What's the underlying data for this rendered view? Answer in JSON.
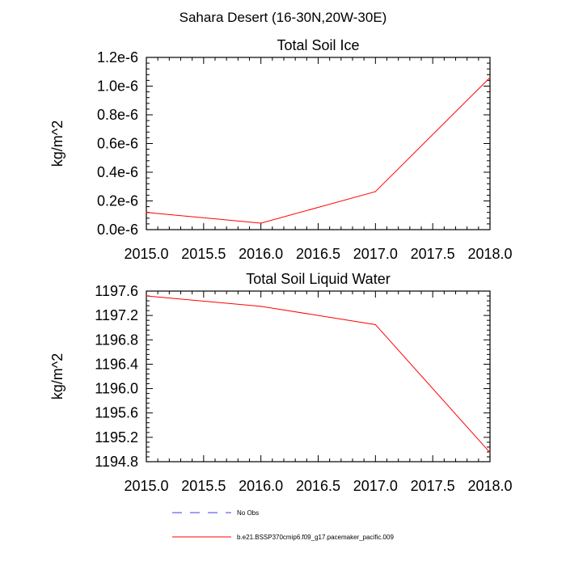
{
  "figure_title": "Sahara Desert (16-30N,20W-30E)",
  "legend": {
    "entries": [
      {
        "label": "No Obs",
        "color": "#3b3bff",
        "dash": "dashed"
      },
      {
        "label": "b.e21.BSSP370cmip6.f09_g17.pacemaker_pacific.009",
        "color": "#ff0000",
        "dash": "solid"
      }
    ]
  },
  "chart_data": [
    {
      "type": "line",
      "title": "Total Soil Ice",
      "xlabel": "",
      "ylabel": "kg/m^2",
      "xlim": [
        2015.0,
        2018.0
      ],
      "ylim": [
        0.0,
        1.2e-06
      ],
      "x_ticks": [
        2015.0,
        2015.5,
        2016.0,
        2016.5,
        2017.0,
        2017.5,
        2018.0
      ],
      "x_tick_labels": [
        "2015.0",
        "2015.5",
        "2016.0",
        "2016.5",
        "2017.0",
        "2017.5",
        "2018.0"
      ],
      "y_ticks": [
        0.0,
        2e-07,
        4e-07,
        6e-07,
        8e-07,
        1e-06,
        1.2e-06
      ],
      "y_tick_labels": [
        "0.0e-6",
        "0.2e-6",
        "0.4e-6",
        "0.6e-6",
        "0.8e-6",
        "1.0e-6",
        "1.2e-6"
      ],
      "grid": false,
      "series": [
        {
          "color": "#ff0000",
          "x": [
            2015,
            2016,
            2017,
            2018
          ],
          "y": [
            1.2e-07,
            4.5e-08,
            2.65e-07,
            1.06e-06
          ]
        }
      ]
    },
    {
      "type": "line",
      "title": "Total Soil Liquid Water",
      "xlabel": "",
      "ylabel": "kg/m^2",
      "xlim": [
        2015.0,
        2018.0
      ],
      "ylim": [
        1194.8,
        1197.6
      ],
      "x_ticks": [
        2015.0,
        2015.5,
        2016.0,
        2016.5,
        2017.0,
        2017.5,
        2018.0
      ],
      "x_tick_labels": [
        "2015.0",
        "2015.5",
        "2016.0",
        "2016.5",
        "2017.0",
        "2017.5",
        "2018.0"
      ],
      "y_ticks": [
        1194.8,
        1195.2,
        1195.6,
        1196.0,
        1196.4,
        1196.8,
        1197.2,
        1197.6
      ],
      "y_tick_labels": [
        "1194.8",
        "1195.2",
        "1195.6",
        "1196.0",
        "1196.4",
        "1196.8",
        "1197.2",
        "1197.6"
      ],
      "grid": false,
      "series": [
        {
          "color": "#ff0000",
          "x": [
            2015,
            2016,
            2017,
            2018
          ],
          "y": [
            1197.52,
            1197.35,
            1197.05,
            1194.95
          ]
        }
      ]
    }
  ]
}
